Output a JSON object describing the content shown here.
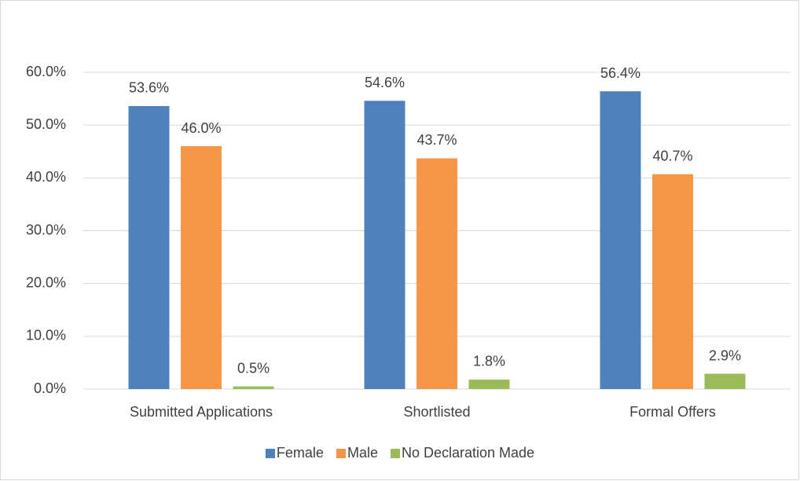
{
  "chart_data": {
    "type": "bar",
    "categories": [
      "Submitted Applications",
      "Shortlisted",
      "Formal Offers"
    ],
    "series": [
      {
        "name": "Female",
        "color": "#4f81bd",
        "values": [
          53.6,
          54.6,
          56.4
        ],
        "value_labels": [
          "53.6%",
          "54.6%",
          "56.4%"
        ]
      },
      {
        "name": "Male",
        "color": "#f79646",
        "values": [
          46.0,
          43.7,
          40.7
        ],
        "value_labels": [
          "46.0%",
          "43.7%",
          "40.7%"
        ]
      },
      {
        "name": "No Declaration Made",
        "color": "#9bbb59",
        "values": [
          0.5,
          1.8,
          2.9
        ],
        "value_labels": [
          "0.5%",
          "1.8%",
          "2.9%"
        ]
      }
    ],
    "ylim": [
      0,
      60
    ],
    "yticks": [
      {
        "value": 0,
        "label": "0.0%"
      },
      {
        "value": 10,
        "label": "10.0%"
      },
      {
        "value": 20,
        "label": "20.0%"
      },
      {
        "value": 30,
        "label": "30.0%"
      },
      {
        "value": 40,
        "label": "40.0%"
      },
      {
        "value": 50,
        "label": "50.0%"
      },
      {
        "value": 60,
        "label": "60.0%"
      }
    ],
    "grid": true,
    "legend": "bottom"
  }
}
